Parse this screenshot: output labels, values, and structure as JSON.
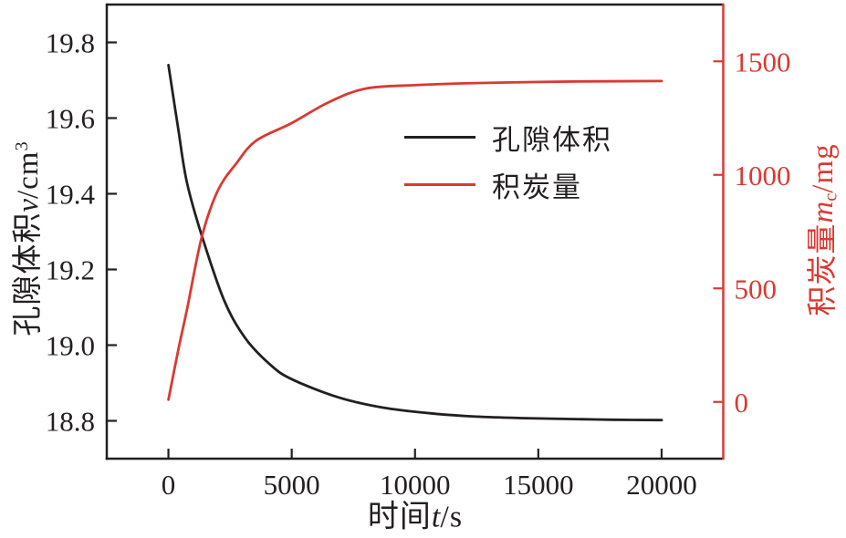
{
  "figure": {
    "background": "#ffffff",
    "text_color": "#231f20"
  },
  "chart_data": {
    "type": "line",
    "title": "",
    "grid": false,
    "legend_position": "upper-middle-inside",
    "x_axis": {
      "title_prefix": "时间",
      "title_var": "t",
      "title_unit": "/s",
      "ticks": [
        0,
        5000,
        10000,
        15000,
        20000
      ],
      "tick_labels": [
        "0",
        "5000",
        "10000",
        "15000",
        "20000"
      ],
      "lim": [
        -2500,
        22500
      ],
      "color": "#231f20"
    },
    "left_axis": {
      "title_prefix": "孔隙体积",
      "title_var": "v",
      "title_unit": "/cm",
      "title_sup": "3",
      "ticks": [
        19.8,
        19.6,
        19.4,
        19.2,
        19.0,
        18.8
      ],
      "tick_labels": [
        "19.8",
        "19.6",
        "19.4",
        "19.2",
        "19.0",
        "18.8"
      ],
      "lim": [
        18.7,
        19.9
      ],
      "color": "#231f20"
    },
    "right_axis": {
      "title_prefix": "积炭量",
      "title_var": "m",
      "title_sub": "c",
      "title_unit": "/mg",
      "ticks": [
        0,
        500,
        1000,
        1500
      ],
      "tick_labels": [
        "0",
        "500",
        "1000",
        "1500"
      ],
      "lim": [
        -250,
        1750
      ],
      "color": "#d93a31"
    },
    "legend": [
      {
        "label": "孔隙体积",
        "color": "#231f20"
      },
      {
        "label": "积炭量",
        "color": "#d93a31"
      }
    ],
    "series": [
      {
        "name": "孔隙体积",
        "axis": "left",
        "color": "#231f20",
        "x": [
          0,
          400,
          750,
          1350,
          2250,
          3100,
          4100,
          5000,
          6900,
          8700,
          10600,
          12500,
          14500,
          16000,
          18000,
          20000
        ],
        "y": [
          19.74,
          19.57,
          19.43,
          19.29,
          19.12,
          19.02,
          18.95,
          18.91,
          18.862,
          18.835,
          18.82,
          18.811,
          18.807,
          18.805,
          18.803,
          18.802
        ]
      },
      {
        "name": "积炭量",
        "axis": "right",
        "color": "#d93a31",
        "x": [
          0,
          400,
          750,
          1350,
          2000,
          2750,
          3550,
          5000,
          6500,
          8000,
          10000,
          12000,
          15000,
          17500,
          20000
        ],
        "y": [
          10,
          230,
          405,
          725,
          930,
          1050,
          1150,
          1228,
          1320,
          1380,
          1395,
          1403,
          1409,
          1412,
          1413
        ]
      }
    ]
  }
}
